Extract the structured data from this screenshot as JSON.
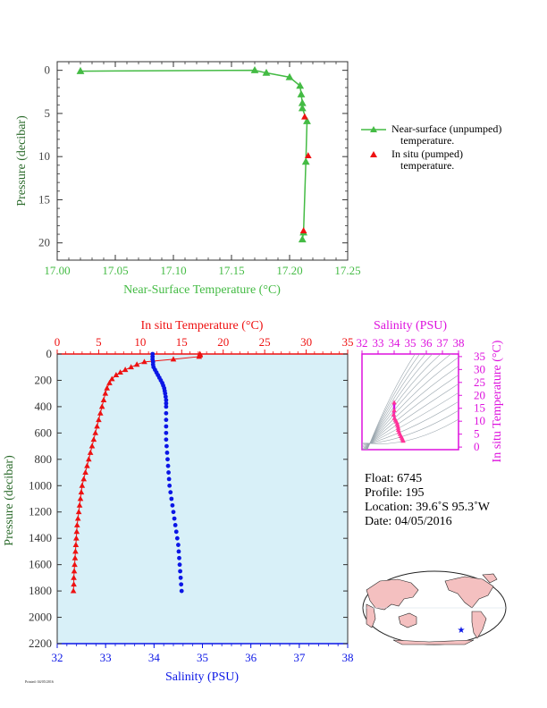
{
  "colors": {
    "surface": "#44bb44",
    "insitu": "#ee1111",
    "salinity": "#0b16e6",
    "magenta": "#dd10dd",
    "panel_bg": "#d8f0f8",
    "axis_dark": "#333333",
    "map_land": "#f4c0c0"
  },
  "chart_data": [
    {
      "type": "line",
      "xlabel": "Near-Surface Temperature (°C)",
      "ylabel": "Pressure (decibar)",
      "xlim": [
        17.0,
        17.25
      ],
      "ylim": [
        22,
        -1
      ],
      "x_ticks": [
        "17.00",
        "17.05",
        "17.10",
        "17.15",
        "17.20",
        "17.25"
      ],
      "y_ticks": [
        "0",
        "5",
        "10",
        "15",
        "20"
      ],
      "legend_position": "right",
      "series": [
        {
          "name": "Near-surface (unpumped) temperature.",
          "marker": "triangle",
          "points": [
            {
              "x": 17.02,
              "y": 0.1
            },
            {
              "x": 17.17,
              "y": 0.0
            },
            {
              "x": 17.18,
              "y": 0.3
            },
            {
              "x": 17.2,
              "y": 0.8
            },
            {
              "x": 17.209,
              "y": 1.8
            },
            {
              "x": 17.21,
              "y": 2.8
            },
            {
              "x": 17.211,
              "y": 3.8
            },
            {
              "x": 17.211,
              "y": 4.4
            },
            {
              "x": 17.215,
              "y": 5.9
            },
            {
              "x": 17.214,
              "y": 10.6
            },
            {
              "x": 17.212,
              "y": 18.8
            },
            {
              "x": 17.211,
              "y": 19.6
            }
          ]
        },
        {
          "name": "In situ (pumped) temperature.",
          "marker": "triangle",
          "points": [
            {
              "x": 17.213,
              "y": 5.4
            },
            {
              "x": 17.216,
              "y": 9.9
            },
            {
              "x": 17.212,
              "y": 18.6
            }
          ]
        }
      ]
    },
    {
      "type": "scatter",
      "title_top": "In situ Temperature (°C)",
      "xlabel": "Salinity (PSU)",
      "ylabel": "Pressure (decibar)",
      "salinity_range": [
        32,
        38
      ],
      "temperature_range": [
        0,
        35
      ],
      "ylim": [
        2200,
        0
      ],
      "sal_ticks": [
        "32",
        "33",
        "34",
        "35",
        "36",
        "37",
        "38"
      ],
      "temp_ticks": [
        "0",
        "5",
        "10",
        "15",
        "20",
        "25",
        "30",
        "35"
      ],
      "p_ticks": [
        "0",
        "200",
        "400",
        "600",
        "800",
        "1000",
        "1200",
        "1400",
        "1600",
        "1800",
        "2000",
        "2200"
      ],
      "temperature_profile": [
        {
          "t": 17.2,
          "p": 0
        },
        {
          "t": 17.2,
          "p": 4
        },
        {
          "t": 17.2,
          "p": 10
        },
        {
          "t": 17.1,
          "p": 20
        },
        {
          "t": 14.0,
          "p": 40
        },
        {
          "t": 10.5,
          "p": 60
        },
        {
          "t": 9.6,
          "p": 80
        },
        {
          "t": 8.9,
          "p": 100
        },
        {
          "t": 8.2,
          "p": 120
        },
        {
          "t": 7.6,
          "p": 140
        },
        {
          "t": 7.1,
          "p": 160
        },
        {
          "t": 6.6,
          "p": 190
        },
        {
          "t": 6.3,
          "p": 220
        },
        {
          "t": 6.0,
          "p": 260
        },
        {
          "t": 5.8,
          "p": 300
        },
        {
          "t": 5.6,
          "p": 350
        },
        {
          "t": 5.4,
          "p": 400
        },
        {
          "t": 5.2,
          "p": 450
        },
        {
          "t": 5.0,
          "p": 500
        },
        {
          "t": 4.8,
          "p": 550
        },
        {
          "t": 4.6,
          "p": 600
        },
        {
          "t": 4.4,
          "p": 650
        },
        {
          "t": 4.2,
          "p": 700
        },
        {
          "t": 4.0,
          "p": 750
        },
        {
          "t": 3.8,
          "p": 800
        },
        {
          "t": 3.6,
          "p": 850
        },
        {
          "t": 3.4,
          "p": 900
        },
        {
          "t": 3.2,
          "p": 950
        },
        {
          "t": 3.0,
          "p": 1000
        },
        {
          "t": 2.9,
          "p": 1050
        },
        {
          "t": 2.8,
          "p": 1100
        },
        {
          "t": 2.7,
          "p": 1150
        },
        {
          "t": 2.6,
          "p": 1200
        },
        {
          "t": 2.5,
          "p": 1250
        },
        {
          "t": 2.4,
          "p": 1300
        },
        {
          "t": 2.35,
          "p": 1350
        },
        {
          "t": 2.3,
          "p": 1400
        },
        {
          "t": 2.25,
          "p": 1450
        },
        {
          "t": 2.2,
          "p": 1500
        },
        {
          "t": 2.15,
          "p": 1550
        },
        {
          "t": 2.1,
          "p": 1600
        },
        {
          "t": 2.05,
          "p": 1650
        },
        {
          "t": 2.0,
          "p": 1700
        },
        {
          "t": 2.0,
          "p": 1750
        },
        {
          "t": 1.95,
          "p": 1800
        }
      ],
      "salinity_profile": [
        {
          "s": 33.97,
          "p": 0
        },
        {
          "s": 33.97,
          "p": 20
        },
        {
          "s": 33.97,
          "p": 40
        },
        {
          "s": 33.98,
          "p": 60
        },
        {
          "s": 33.98,
          "p": 80
        },
        {
          "s": 33.99,
          "p": 100
        },
        {
          "s": 34.02,
          "p": 120
        },
        {
          "s": 34.05,
          "p": 140
        },
        {
          "s": 34.08,
          "p": 160
        },
        {
          "s": 34.11,
          "p": 180
        },
        {
          "s": 34.14,
          "p": 200
        },
        {
          "s": 34.17,
          "p": 220
        },
        {
          "s": 34.19,
          "p": 240
        },
        {
          "s": 34.21,
          "p": 260
        },
        {
          "s": 34.22,
          "p": 280
        },
        {
          "s": 34.23,
          "p": 300
        },
        {
          "s": 34.24,
          "p": 325
        },
        {
          "s": 34.25,
          "p": 350
        },
        {
          "s": 34.25,
          "p": 375
        },
        {
          "s": 34.25,
          "p": 400
        },
        {
          "s": 34.25,
          "p": 450
        },
        {
          "s": 34.25,
          "p": 500
        },
        {
          "s": 34.25,
          "p": 550
        },
        {
          "s": 34.25,
          "p": 600
        },
        {
          "s": 34.25,
          "p": 650
        },
        {
          "s": 34.26,
          "p": 700
        },
        {
          "s": 34.27,
          "p": 750
        },
        {
          "s": 34.28,
          "p": 800
        },
        {
          "s": 34.29,
          "p": 850
        },
        {
          "s": 34.3,
          "p": 900
        },
        {
          "s": 34.31,
          "p": 950
        },
        {
          "s": 34.32,
          "p": 1000
        },
        {
          "s": 34.34,
          "p": 1050
        },
        {
          "s": 34.36,
          "p": 1100
        },
        {
          "s": 34.38,
          "p": 1150
        },
        {
          "s": 34.4,
          "p": 1200
        },
        {
          "s": 34.42,
          "p": 1250
        },
        {
          "s": 34.44,
          "p": 1300
        },
        {
          "s": 34.46,
          "p": 1350
        },
        {
          "s": 34.48,
          "p": 1400
        },
        {
          "s": 34.5,
          "p": 1450
        },
        {
          "s": 34.51,
          "p": 1500
        },
        {
          "s": 34.52,
          "p": 1550
        },
        {
          "s": 34.53,
          "p": 1600
        },
        {
          "s": 34.54,
          "p": 1650
        },
        {
          "s": 34.55,
          "p": 1700
        },
        {
          "s": 34.56,
          "p": 1750
        },
        {
          "s": 34.57,
          "p": 1800
        }
      ]
    },
    {
      "type": "scatter",
      "title_top": "Salinity (PSU)",
      "ylabel_right": "In situ Temperature (°C)",
      "sal_ticks": [
        "32",
        "33",
        "34",
        "35",
        "36",
        "37",
        "38"
      ],
      "temp_ticks": [
        "0",
        "5",
        "10",
        "15",
        "20",
        "25",
        "30",
        "35"
      ],
      "xlim": [
        32,
        38
      ],
      "ylim": [
        -1,
        36
      ],
      "note": "",
      "ts_points": [
        {
          "s": 34.0,
          "t": 17.2
        },
        {
          "s": 34.0,
          "t": 14.2
        },
        {
          "s": 33.97,
          "t": 12.6
        },
        {
          "s": 34.02,
          "t": 11.2
        },
        {
          "s": 34.08,
          "t": 10.5
        },
        {
          "s": 34.14,
          "t": 9.8
        },
        {
          "s": 34.19,
          "t": 9.0
        },
        {
          "s": 34.22,
          "t": 8.2
        },
        {
          "s": 34.25,
          "t": 7.4
        },
        {
          "s": 34.26,
          "t": 6.6
        },
        {
          "s": 34.3,
          "t": 5.8
        },
        {
          "s": 34.36,
          "t": 5.0
        },
        {
          "s": 34.42,
          "t": 4.2
        },
        {
          "s": 34.48,
          "t": 3.6
        },
        {
          "s": 34.52,
          "t": 3.0
        },
        {
          "s": 34.56,
          "t": 2.4
        }
      ]
    }
  ],
  "legend": {
    "line1a": "Near-surface (unpumped)",
    "line1b": "temperature.",
    "line2a": "In situ (pumped)",
    "line2b": "temperature."
  },
  "info": {
    "float": "Float:  6745",
    "profile": "Profile:  195",
    "location": "Location:  39.6˚S  95.3˚W",
    "date": "Date:  04/05/2016"
  },
  "map": {
    "marker_label": "float location",
    "icon": "star-icon"
  },
  "footer": {
    "text": "Printed: 04/05/2016"
  }
}
